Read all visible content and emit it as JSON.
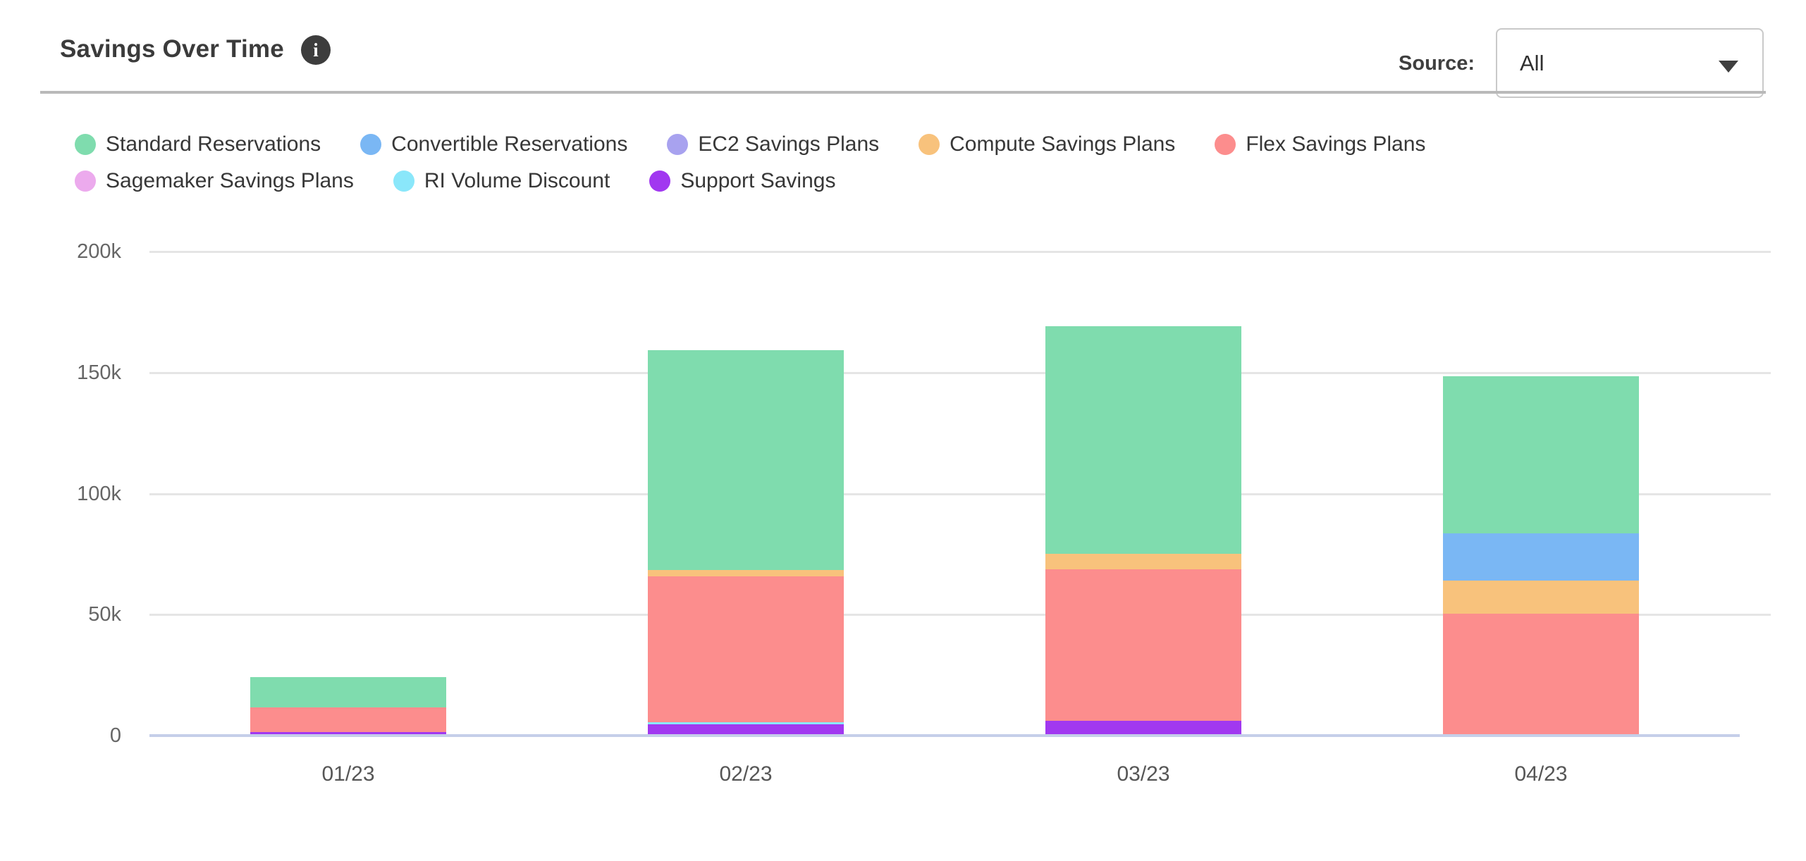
{
  "header": {
    "title": "Savings Over Time",
    "info_glyph": "i",
    "source_label": "Source:",
    "source_value": "All"
  },
  "legend_items": [
    {
      "label": "Standard Reservations",
      "color": "#7fdcae"
    },
    {
      "label": "Convertible Reservations",
      "color": "#7ab7f4"
    },
    {
      "label": "EC2 Savings Plans",
      "color": "#a8a2ef"
    },
    {
      "label": "Compute Savings Plans",
      "color": "#f8c27c"
    },
    {
      "label": "Flex Savings Plans",
      "color": "#fc8d8d"
    },
    {
      "label": "Sagemaker Savings Plans",
      "color": "#ecaaed"
    },
    {
      "label": "RI Volume Discount",
      "color": "#8ae7fa"
    },
    {
      "label": "Support Savings",
      "color": "#a138f0"
    }
  ],
  "chart_data": {
    "type": "bar",
    "stacked": true,
    "title": "Savings Over Time",
    "xlabel": "",
    "ylabel": "",
    "categories": [
      "01/23",
      "02/23",
      "03/23",
      "04/23"
    ],
    "series": [
      {
        "name": "Standard Reservations",
        "color": "#7fdcae",
        "values": [
          12400,
          90900,
          93900,
          64900
        ]
      },
      {
        "name": "Convertible Reservations",
        "color": "#7ab7f4",
        "values": [
          0,
          0,
          0,
          19500
        ]
      },
      {
        "name": "EC2 Savings Plans",
        "color": "#a8a2ef",
        "values": [
          0,
          0,
          0,
          0
        ]
      },
      {
        "name": "Compute Savings Plans",
        "color": "#f8c27c",
        "values": [
          0,
          2600,
          6400,
          13700
        ]
      },
      {
        "name": "Flex Savings Plans",
        "color": "#fc8d8d",
        "values": [
          10200,
          60200,
          62800,
          49800
        ]
      },
      {
        "name": "Sagemaker Savings Plans",
        "color": "#ecaaed",
        "values": [
          0,
          0,
          0,
          0
        ]
      },
      {
        "name": "RI Volume Discount",
        "color": "#8ae7fa",
        "values": [
          0,
          900,
          0,
          0
        ]
      },
      {
        "name": "Support Savings",
        "color": "#a138f0",
        "values": [
          900,
          4200,
          5400,
          0
        ]
      }
    ],
    "stack_order_bottom_to_top": [
      "Support Savings",
      "RI Volume Discount",
      "Flex Savings Plans",
      "Compute Savings Plans",
      "Convertible Reservations",
      "EC2 Savings Plans",
      "Sagemaker Savings Plans",
      "Standard Reservations"
    ],
    "totals": [
      23500,
      158800,
      168500,
      147900
    ],
    "yticks": [
      {
        "value": 0,
        "label": "0"
      },
      {
        "value": 50000,
        "label": "50k"
      },
      {
        "value": 100000,
        "label": "100k"
      },
      {
        "value": 150000,
        "label": "150k"
      },
      {
        "value": 200000,
        "label": "200k"
      }
    ],
    "ylim": [
      0,
      200000
    ],
    "grid": true,
    "legend_position": "top"
  }
}
